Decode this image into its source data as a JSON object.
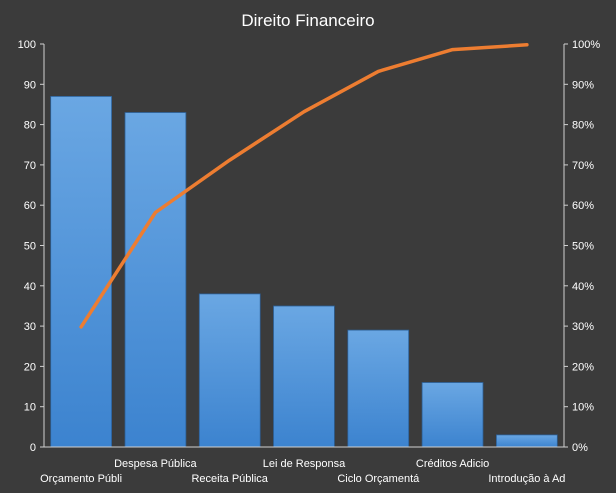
{
  "chart_data": {
    "type": "bar",
    "title": "Direito  Financeiro",
    "categories": [
      "Orçamento Públi",
      "Despesa Pública",
      "Receita Pública",
      "Lei de Responsa",
      "Ciclo Orçamentá",
      "Créditos Adicio",
      "Introdução à Ad"
    ],
    "series": [
      {
        "type": "bar",
        "axis": "left",
        "values": [
          87,
          83,
          38,
          35,
          29,
          16,
          3
        ]
      },
      {
        "type": "line",
        "axis": "right",
        "values": [
          29.8,
          58.2,
          71.2,
          83.2,
          93.2,
          98.6,
          99.8
        ]
      }
    ],
    "ylim": [
      0,
      100
    ],
    "y2lim": [
      0,
      100
    ],
    "yticks": [
      "0",
      "10",
      "20",
      "30",
      "40",
      "50",
      "60",
      "70",
      "80",
      "90",
      "100"
    ],
    "y2ticks": [
      "0%",
      "10%",
      "20%",
      "30%",
      "40%",
      "50%",
      "60%",
      "70%",
      "80%",
      "90%",
      "100%"
    ],
    "colors": {
      "bar_top": "#6aa7e3",
      "bar_bottom": "#3c83cf",
      "line": "#ed7d31",
      "background": "#3b3b3b",
      "text": "#ffffff",
      "axis": "#d0d0d0"
    }
  }
}
